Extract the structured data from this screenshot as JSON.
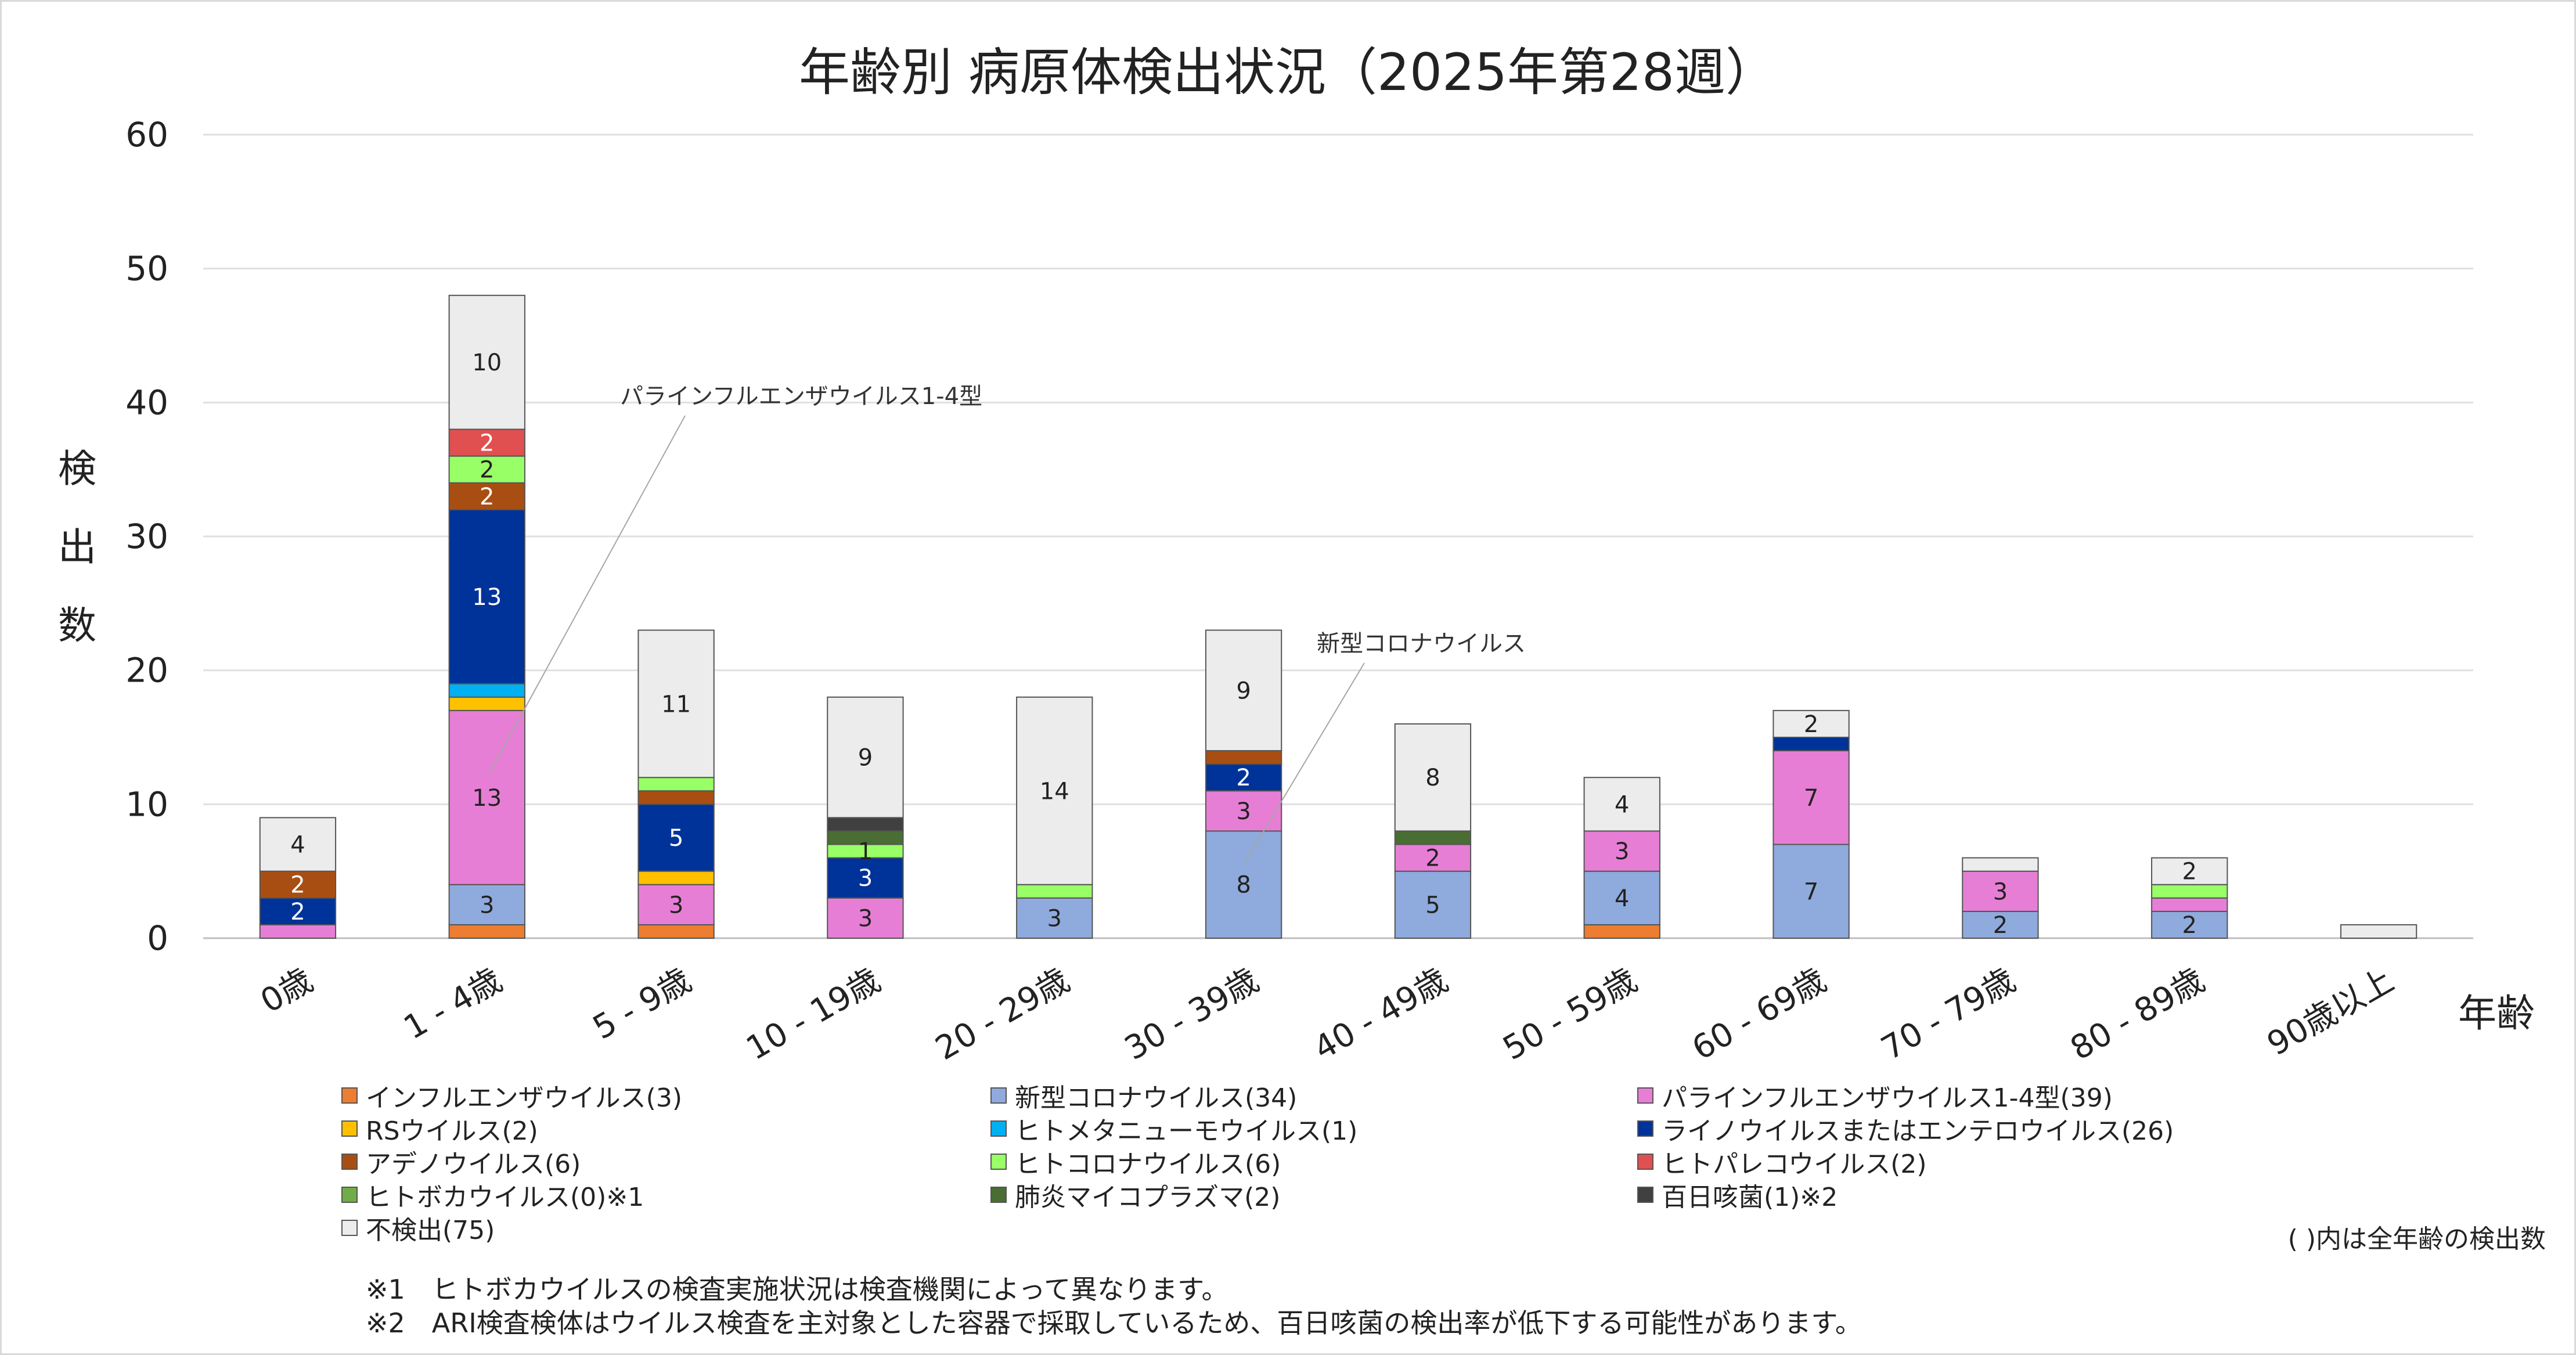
{
  "chart_data": {
    "type": "bar",
    "stacked": true,
    "title": "年齢別 病原体検出状況（2025年第28週）",
    "ylabel": "検出数",
    "xlabel": "年齢",
    "ylim": [
      0,
      60
    ],
    "yticks": [
      0,
      10,
      20,
      30,
      40,
      50,
      60
    ],
    "grid": true,
    "legend_position": "bottom",
    "categories": [
      "0歳",
      "1 - 4歳",
      "5 - 9歳",
      "10 - 19歳",
      "20 - 29歳",
      "30 - 39歳",
      "40 - 49歳",
      "50 - 59歳",
      "60 - 69歳",
      "70 - 79歳",
      "80 - 89歳",
      "90歳以上"
    ],
    "series": [
      {
        "name": "インフルエンザウイルス(3)",
        "color": "#ed7d31",
        "values": [
          0,
          1,
          1,
          0,
          0,
          0,
          0,
          1,
          0,
          0,
          0,
          0
        ]
      },
      {
        "name": "新型コロナウイルス(34)",
        "color": "#8faadc",
        "values": [
          0,
          3,
          0,
          0,
          3,
          8,
          5,
          4,
          7,
          2,
          2,
          0
        ]
      },
      {
        "name": "パラインフルエンザウイルス1-4型(39)",
        "color": "#e77ed5",
        "values": [
          1,
          13,
          3,
          3,
          0,
          3,
          2,
          3,
          7,
          3,
          1,
          0
        ]
      },
      {
        "name": "RSウイルス(2)",
        "color": "#ffc000",
        "values": [
          0,
          1,
          1,
          0,
          0,
          0,
          0,
          0,
          0,
          0,
          0,
          0
        ]
      },
      {
        "name": "ヒトメタニューモウイルス(1)",
        "color": "#00b0f0",
        "values": [
          0,
          1,
          0,
          0,
          0,
          0,
          0,
          0,
          0,
          0,
          0,
          0
        ]
      },
      {
        "name": "ライノウイルスまたはエンテロウイルス(26)",
        "color": "#003399",
        "values": [
          2,
          13,
          5,
          3,
          0,
          2,
          0,
          0,
          1,
          0,
          0,
          0
        ]
      },
      {
        "name": "アデノウイルス(6)",
        "color": "#a94e12",
        "values": [
          2,
          2,
          1,
          0,
          0,
          1,
          0,
          0,
          0,
          0,
          0,
          0
        ]
      },
      {
        "name": "ヒトコロナウイルス(6)",
        "color": "#99ff66",
        "values": [
          0,
          2,
          1,
          1,
          1,
          0,
          0,
          0,
          0,
          0,
          1,
          0
        ]
      },
      {
        "name": "ヒトパレコウイルス(2)",
        "color": "#e05050",
        "values": [
          0,
          2,
          0,
          0,
          0,
          0,
          0,
          0,
          0,
          0,
          0,
          0
        ]
      },
      {
        "name": "ヒトボカウイルス(0)※1",
        "color": "#70ad47",
        "values": [
          0,
          0,
          0,
          0,
          0,
          0,
          0,
          0,
          0,
          0,
          0,
          0
        ]
      },
      {
        "name": "肺炎マイコプラズマ(2)",
        "color": "#4a6d33",
        "values": [
          0,
          0,
          0,
          1,
          0,
          0,
          1,
          0,
          0,
          0,
          0,
          0
        ]
      },
      {
        "name": "百日咳菌(1)※2",
        "color": "#404040",
        "values": [
          0,
          0,
          0,
          1,
          0,
          0,
          0,
          0,
          0,
          0,
          0,
          0
        ]
      },
      {
        "name": "不検出(75)",
        "color": "#ececec",
        "values": [
          4,
          10,
          11,
          9,
          14,
          9,
          8,
          4,
          2,
          1,
          2,
          1
        ]
      }
    ],
    "data_labels": [
      {
        "cat": 0,
        "series": 5,
        "text": "2"
      },
      {
        "cat": 0,
        "series": 6,
        "text": "2"
      },
      {
        "cat": 0,
        "series": 12,
        "text": "4"
      },
      {
        "cat": 1,
        "series": 1,
        "text": "3"
      },
      {
        "cat": 1,
        "series": 2,
        "text": "13"
      },
      {
        "cat": 1,
        "series": 5,
        "text": "13"
      },
      {
        "cat": 1,
        "series": 6,
        "text": "2"
      },
      {
        "cat": 1,
        "series": 7,
        "text": "2"
      },
      {
        "cat": 1,
        "series": 8,
        "text": "2"
      },
      {
        "cat": 1,
        "series": 12,
        "text": "10"
      },
      {
        "cat": 2,
        "series": 2,
        "text": "3"
      },
      {
        "cat": 2,
        "series": 5,
        "text": "5"
      },
      {
        "cat": 2,
        "series": 12,
        "text": "11"
      },
      {
        "cat": 3,
        "series": 2,
        "text": "3"
      },
      {
        "cat": 3,
        "series": 5,
        "text": "3"
      },
      {
        "cat": 3,
        "series": 7,
        "text": "1"
      },
      {
        "cat": 3,
        "series": 12,
        "text": "9"
      },
      {
        "cat": 4,
        "series": 1,
        "text": "3"
      },
      {
        "cat": 4,
        "series": 12,
        "text": "14"
      },
      {
        "cat": 5,
        "series": 1,
        "text": "8"
      },
      {
        "cat": 5,
        "series": 2,
        "text": "3"
      },
      {
        "cat": 5,
        "series": 5,
        "text": "2"
      },
      {
        "cat": 5,
        "series": 12,
        "text": "9"
      },
      {
        "cat": 6,
        "series": 1,
        "text": "5"
      },
      {
        "cat": 6,
        "series": 2,
        "text": "2"
      },
      {
        "cat": 6,
        "series": 12,
        "text": "8"
      },
      {
        "cat": 7,
        "series": 1,
        "text": "4"
      },
      {
        "cat": 7,
        "series": 2,
        "text": "3"
      },
      {
        "cat": 7,
        "series": 12,
        "text": "4"
      },
      {
        "cat": 8,
        "series": 1,
        "text": "7"
      },
      {
        "cat": 8,
        "series": 2,
        "text": "7"
      },
      {
        "cat": 8,
        "series": 12,
        "text": "2"
      },
      {
        "cat": 9,
        "series": 1,
        "text": "2"
      },
      {
        "cat": 9,
        "series": 2,
        "text": "3"
      },
      {
        "cat": 10,
        "series": 1,
        "text": "2"
      },
      {
        "cat": 10,
        "series": 12,
        "text": "2"
      }
    ],
    "annotations": [
      {
        "text": "パラインフルエンザウイルス1-4型",
        "cat": 1,
        "series": 2
      },
      {
        "text": "新型コロナウイルス",
        "cat": 5,
        "series": 1
      }
    ]
  },
  "notes": {
    "legend_note": "( )内は全年齢の検出数",
    "footnote1": "※1　ヒトボカウイルスの検査実施状況は検査機関によって異なります。",
    "footnote2": "※2　ARI検査検体はウイルス検査を主対象とした容器で採取しているため、百日咳菌の検出率が低下する可能性があります。"
  }
}
